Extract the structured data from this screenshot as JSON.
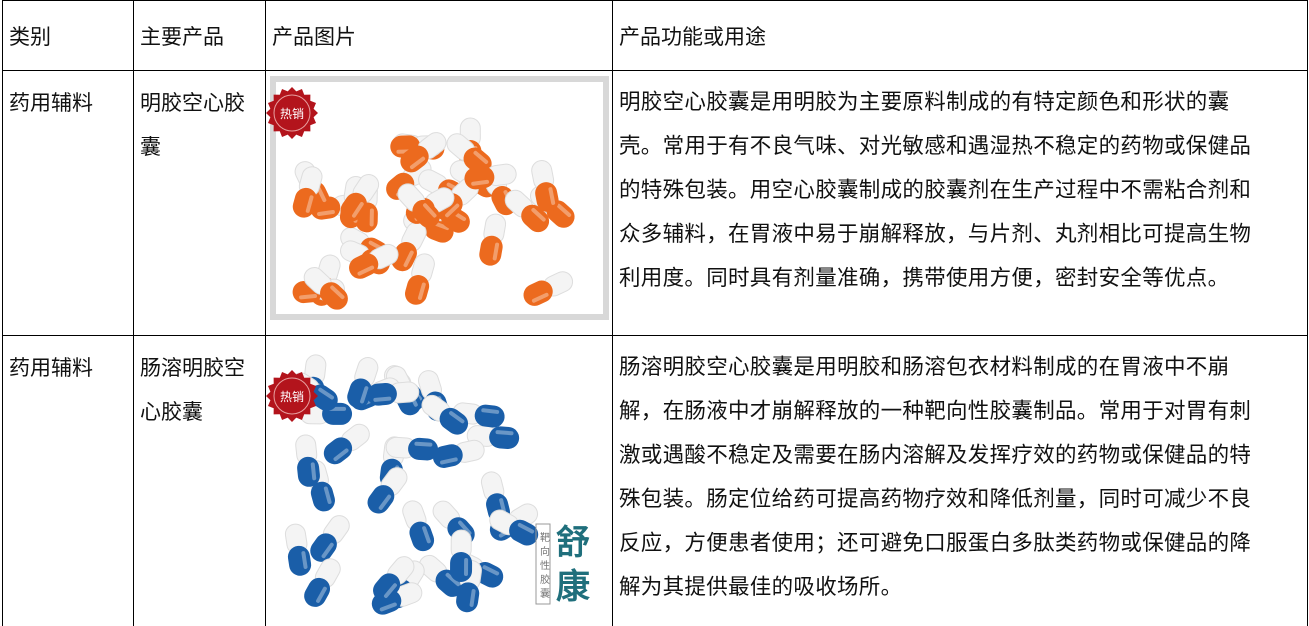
{
  "table": {
    "header": [
      "类别",
      "主要产品",
      "产品图片",
      "产品功能或用途"
    ],
    "rows": [
      {
        "category": "药用辅料",
        "product": [
          "明胶空心胶",
          "囊"
        ],
        "image": {
          "badge": "热销"
        },
        "description": [
          "明胶空心胶囊是用明胶为主要原料制成的有特定颜色和形状的囊",
          "壳。常用于有不良气味、对光敏感和遇湿热不稳定的药物或保健品",
          "的特殊包装。用空心胶囊制成的胶囊剂在生产过程中不需粘合剂和",
          "众多辅料，在胃液中易于崩解释放，与片剂、丸剂相比可提高生物",
          "利用度。同时具有剂量准确，携带使用方便，密封安全等优点。"
        ]
      },
      {
        "category": "药用辅料",
        "product": [
          "肠溶明胶空",
          "心胶囊"
        ],
        "image": {
          "badge": "热销",
          "brand": [
            "舒",
            "康"
          ],
          "tagline": "靶向性胶囊"
        },
        "description": [
          "肠溶明胶空心胶囊是用明胶和肠溶包衣材料制成的在胃液中不崩",
          "解，在肠液中才崩解释放的一种靶向性胶囊制品。常用于对胃有刺",
          "激或遇酸不稳定及需要在肠内溶解及发挥疗效的药物或保健品的特",
          "殊包装。肠定位给药可提高药物疗效和降低剂量，同时可减少不良",
          "反应，方便患者使用；还可避免口服蛋白多肽类药物或保健品的降",
          "解为其提供最佳的吸收场所。"
        ]
      }
    ]
  }
}
